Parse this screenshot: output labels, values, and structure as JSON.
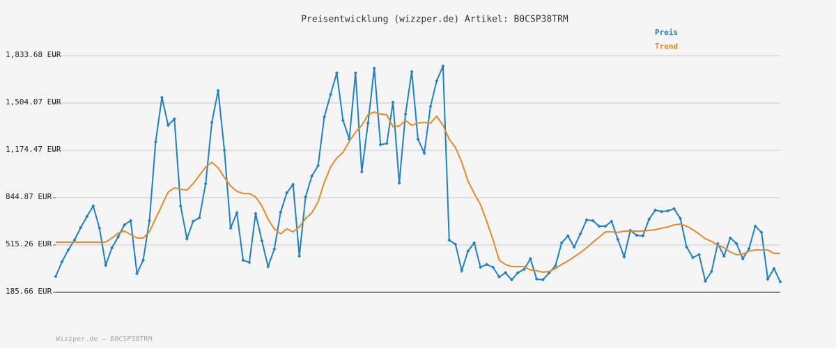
{
  "chart_data": {
    "type": "line",
    "title": "Preisentwicklung (wizzper.de) Artikel: B0CSP38TRM",
    "footer": "Wizzper.de – B0CSP38TRM",
    "ylim": [
      185.66,
      1833.68
    ],
    "yticks": [
      {
        "value": 185.66,
        "label": "185.66 EUR"
      },
      {
        "value": 515.26,
        "label": "515.26 EUR"
      },
      {
        "value": 844.87,
        "label": "844.87 EUR"
      },
      {
        "value": 1174.47,
        "label": "1,174.47 EUR"
      },
      {
        "value": 1504.07,
        "label": "1,504.07 EUR"
      },
      {
        "value": 1833.68,
        "label": "1,833.68 EUR"
      }
    ],
    "grid": true,
    "legend": "top-right",
    "series": [
      {
        "name": "Preis",
        "color": "#1f7fc0",
        "markers": true,
        "values": [
          297,
          399,
          481,
          549,
          637,
          714,
          787,
          632,
          375,
          496,
          573,
          656,
          685,
          317,
          409,
          685,
          1233,
          1543,
          1349,
          1393,
          787,
          559,
          680,
          705,
          942,
          1369,
          1591,
          1175,
          632,
          739,
          409,
          394,
          734,
          545,
          365,
          487,
          743,
          879,
          937,
          438,
          850,
          995,
          1068,
          1407,
          1563,
          1713,
          1383,
          1252,
          1713,
          1025,
          1364,
          1747,
          1214,
          1223,
          1509,
          947,
          1427,
          1722,
          1252,
          1155,
          1480,
          1659,
          1761,
          549,
          520,
          336,
          472,
          530,
          360,
          380,
          360,
          293,
          322,
          273,
          322,
          346,
          419,
          278,
          273,
          322,
          370,
          530,
          579,
          501,
          593,
          690,
          685,
          646,
          646,
          680,
          554,
          433,
          617,
          583,
          579,
          695,
          758,
          748,
          753,
          768,
          700,
          501,
          428,
          448,
          264,
          331,
          525,
          438,
          564,
          525,
          419,
          491,
          646,
          603,
          278,
          351,
          259
        ]
      },
      {
        "name": "Trend",
        "color": "#e08a2a",
        "markers": false,
        "values": [
          535,
          535,
          535,
          535,
          535,
          535,
          535,
          535,
          535,
          564,
          598,
          612,
          588,
          564,
          564,
          607,
          700,
          792,
          884,
          913,
          903,
          898,
          942,
          1000,
          1058,
          1092,
          1053,
          986,
          927,
          889,
          874,
          874,
          850,
          787,
          695,
          627,
          593,
          627,
          607,
          641,
          700,
          739,
          816,
          952,
          1058,
          1121,
          1160,
          1237,
          1300,
          1349,
          1422,
          1441,
          1427,
          1422,
          1339,
          1344,
          1383,
          1349,
          1364,
          1369,
          1364,
          1412,
          1349,
          1252,
          1194,
          1092,
          961,
          874,
          797,
          680,
          554,
          409,
          380,
          365,
          365,
          365,
          341,
          336,
          326,
          331,
          351,
          380,
          404,
          433,
          462,
          496,
          535,
          569,
          607,
          607,
          603,
          612,
          612,
          612,
          612,
          617,
          622,
          632,
          641,
          656,
          661,
          646,
          622,
          593,
          559,
          540,
          515,
          496,
          467,
          448,
          452,
          472,
          481,
          481,
          481,
          457,
          457
        ]
      }
    ]
  }
}
